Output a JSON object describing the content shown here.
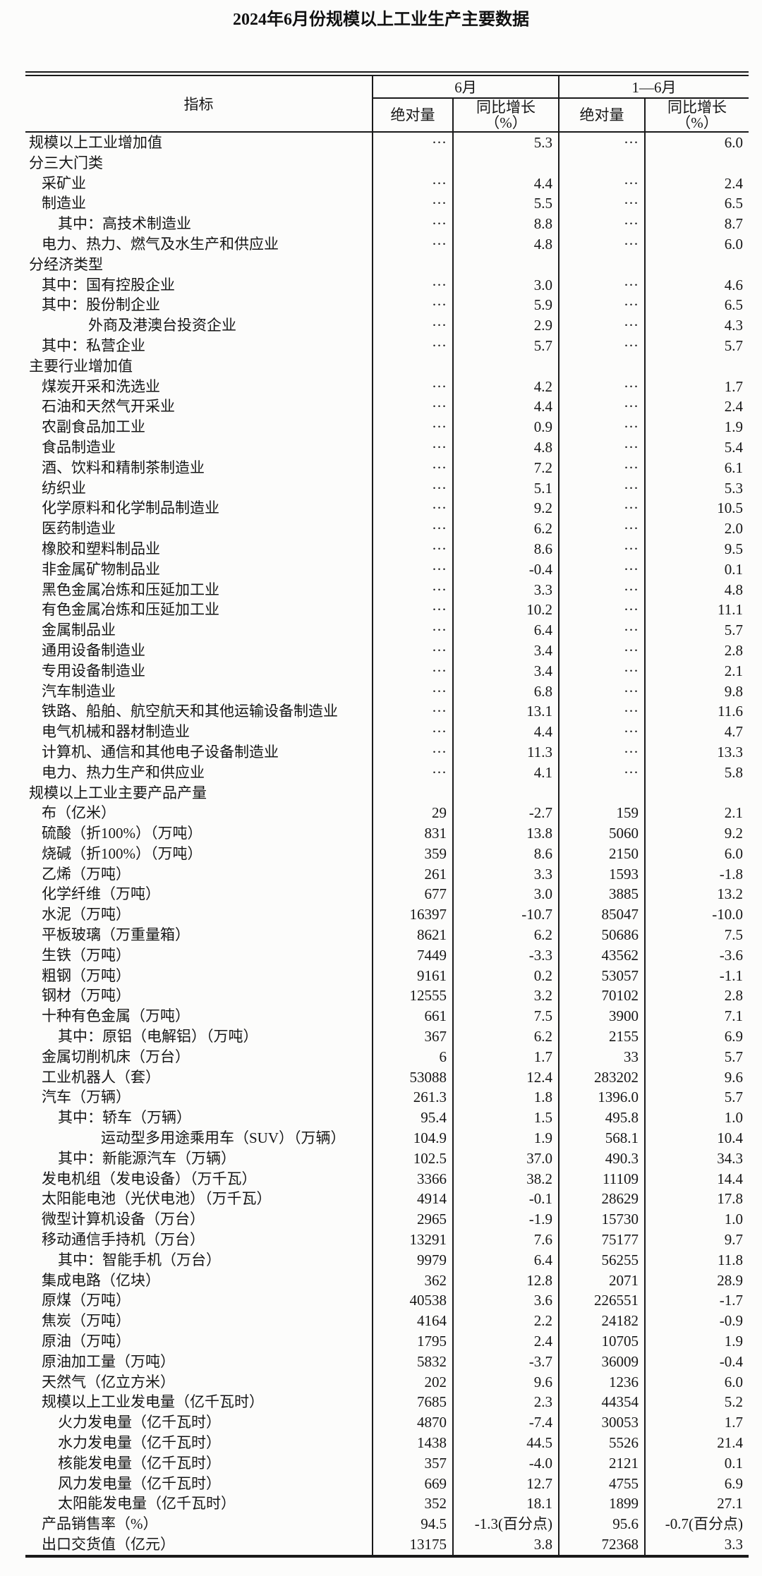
{
  "title": "2024年6月份规模以上工业生产主要数据",
  "table": {
    "header": {
      "indicator": "指标",
      "june": "6月",
      "jan_jun": "1—6月",
      "absolute": "绝对量",
      "yoy": "同比增长",
      "yoy_unit": "（%）"
    },
    "rows": [
      {
        "label": "规模以上工业增加值",
        "indent": 0,
        "values": [
          "···",
          "5.3",
          "···",
          "6.0"
        ]
      },
      {
        "label": "分三大门类",
        "indent": 0,
        "values": [
          "",
          "",
          "",
          ""
        ]
      },
      {
        "label": "采矿业",
        "indent": 1,
        "values": [
          "···",
          "4.4",
          "···",
          "2.4"
        ]
      },
      {
        "label": "制造业",
        "indent": 1,
        "values": [
          "···",
          "5.5",
          "···",
          "6.5"
        ]
      },
      {
        "label": "其中：高技术制造业",
        "indent": 2,
        "values": [
          "···",
          "8.8",
          "···",
          "8.7"
        ]
      },
      {
        "label": "电力、热力、燃气及水生产和供应业",
        "indent": 1,
        "values": [
          "···",
          "4.8",
          "···",
          "6.0"
        ]
      },
      {
        "label": "分经济类型",
        "indent": 0,
        "values": [
          "",
          "",
          "",
          ""
        ]
      },
      {
        "label": "其中：国有控股企业",
        "indent": 1,
        "values": [
          "···",
          "3.0",
          "···",
          "4.6"
        ]
      },
      {
        "label": "其中：股份制企业",
        "indent": 1,
        "values": [
          "···",
          "5.9",
          "···",
          "6.5"
        ]
      },
      {
        "label": "外商及港澳台投资企业",
        "indent": 3,
        "values": [
          "···",
          "2.9",
          "···",
          "4.3"
        ]
      },
      {
        "label": "其中：私营企业",
        "indent": 1,
        "values": [
          "···",
          "5.7",
          "···",
          "5.7"
        ]
      },
      {
        "label": "主要行业增加值",
        "indent": 0,
        "values": [
          "",
          "",
          "",
          ""
        ]
      },
      {
        "label": "煤炭开采和洗选业",
        "indent": 1,
        "values": [
          "···",
          "4.2",
          "···",
          "1.7"
        ]
      },
      {
        "label": "石油和天然气开采业",
        "indent": 1,
        "values": [
          "···",
          "4.4",
          "···",
          "2.4"
        ]
      },
      {
        "label": "农副食品加工业",
        "indent": 1,
        "values": [
          "···",
          "0.9",
          "···",
          "1.9"
        ]
      },
      {
        "label": "食品制造业",
        "indent": 1,
        "values": [
          "···",
          "4.8",
          "···",
          "5.4"
        ]
      },
      {
        "label": "酒、饮料和精制茶制造业",
        "indent": 1,
        "values": [
          "···",
          "7.2",
          "···",
          "6.1"
        ]
      },
      {
        "label": "纺织业",
        "indent": 1,
        "values": [
          "···",
          "5.1",
          "···",
          "5.3"
        ]
      },
      {
        "label": "化学原料和化学制品制造业",
        "indent": 1,
        "values": [
          "···",
          "9.2",
          "···",
          "10.5"
        ]
      },
      {
        "label": "医药制造业",
        "indent": 1,
        "values": [
          "···",
          "6.2",
          "···",
          "2.0"
        ]
      },
      {
        "label": "橡胶和塑料制品业",
        "indent": 1,
        "values": [
          "···",
          "8.6",
          "···",
          "9.5"
        ]
      },
      {
        "label": "非金属矿物制品业",
        "indent": 1,
        "values": [
          "···",
          "-0.4",
          "···",
          "0.1"
        ]
      },
      {
        "label": "黑色金属冶炼和压延加工业",
        "indent": 1,
        "values": [
          "···",
          "3.3",
          "···",
          "4.8"
        ]
      },
      {
        "label": "有色金属冶炼和压延加工业",
        "indent": 1,
        "values": [
          "···",
          "10.2",
          "···",
          "11.1"
        ]
      },
      {
        "label": "金属制品业",
        "indent": 1,
        "values": [
          "···",
          "6.4",
          "···",
          "5.7"
        ]
      },
      {
        "label": "通用设备制造业",
        "indent": 1,
        "values": [
          "···",
          "3.4",
          "···",
          "2.8"
        ]
      },
      {
        "label": "专用设备制造业",
        "indent": 1,
        "values": [
          "···",
          "3.4",
          "···",
          "2.1"
        ]
      },
      {
        "label": "汽车制造业",
        "indent": 1,
        "values": [
          "···",
          "6.8",
          "···",
          "9.8"
        ]
      },
      {
        "label": "铁路、船舶、航空航天和其他运输设备制造业",
        "indent": 1,
        "values": [
          "···",
          "13.1",
          "···",
          "11.6"
        ]
      },
      {
        "label": "电气机械和器材制造业",
        "indent": 1,
        "values": [
          "···",
          "4.4",
          "···",
          "4.7"
        ]
      },
      {
        "label": "计算机、通信和其他电子设备制造业",
        "indent": 1,
        "values": [
          "···",
          "11.3",
          "···",
          "13.3"
        ]
      },
      {
        "label": "电力、热力生产和供应业",
        "indent": 1,
        "values": [
          "···",
          "4.1",
          "···",
          "5.8"
        ]
      },
      {
        "label": "规模以上工业主要产品产量",
        "indent": 0,
        "values": [
          "",
          "",
          "",
          ""
        ]
      },
      {
        "label": "布（亿米）",
        "indent": 1,
        "values": [
          "29",
          "-2.7",
          "159",
          "2.1"
        ]
      },
      {
        "label": "硫酸（折100%）（万吨）",
        "indent": 1,
        "values": [
          "831",
          "13.8",
          "5060",
          "9.2"
        ]
      },
      {
        "label": "烧碱（折100%）（万吨）",
        "indent": 1,
        "values": [
          "359",
          "8.6",
          "2150",
          "6.0"
        ]
      },
      {
        "label": "乙烯（万吨）",
        "indent": 1,
        "values": [
          "261",
          "3.3",
          "1593",
          "-1.8"
        ]
      },
      {
        "label": "化学纤维（万吨）",
        "indent": 1,
        "values": [
          "677",
          "3.0",
          "3885",
          "13.2"
        ]
      },
      {
        "label": "水泥（万吨）",
        "indent": 1,
        "values": [
          "16397",
          "-10.7",
          "85047",
          "-10.0"
        ]
      },
      {
        "label": "平板玻璃（万重量箱）",
        "indent": 1,
        "values": [
          "8621",
          "6.2",
          "50686",
          "7.5"
        ]
      },
      {
        "label": "生铁（万吨）",
        "indent": 1,
        "values": [
          "7449",
          "-3.3",
          "43562",
          "-3.6"
        ]
      },
      {
        "label": "粗钢（万吨）",
        "indent": 1,
        "values": [
          "9161",
          "0.2",
          "53057",
          "-1.1"
        ]
      },
      {
        "label": "钢材（万吨）",
        "indent": 1,
        "values": [
          "12555",
          "3.2",
          "70102",
          "2.8"
        ]
      },
      {
        "label": "十种有色金属（万吨）",
        "indent": 1,
        "values": [
          "661",
          "7.5",
          "3900",
          "7.1"
        ]
      },
      {
        "label": "其中：原铝（电解铝）（万吨）",
        "indent": 2,
        "values": [
          "367",
          "6.2",
          "2155",
          "6.9"
        ]
      },
      {
        "label": "金属切削机床（万台）",
        "indent": 1,
        "values": [
          "6",
          "1.7",
          "33",
          "5.7"
        ]
      },
      {
        "label": "工业机器人（套）",
        "indent": 1,
        "values": [
          "53088",
          "12.4",
          "283202",
          "9.6"
        ]
      },
      {
        "label": "汽车（万辆）",
        "indent": 1,
        "values": [
          "261.3",
          "1.8",
          "1396.0",
          "5.7"
        ]
      },
      {
        "label": "其中：轿车（万辆）",
        "indent": 2,
        "values": [
          "95.4",
          "1.5",
          "495.8",
          "1.0"
        ]
      },
      {
        "label": "运动型多用途乘用车（SUV）（万辆）",
        "indent": 4,
        "values": [
          "104.9",
          "1.9",
          "568.1",
          "10.4"
        ]
      },
      {
        "label": "其中：新能源汽车（万辆）",
        "indent": 2,
        "values": [
          "102.5",
          "37.0",
          "490.3",
          "34.3"
        ]
      },
      {
        "label": "发电机组（发电设备）（万千瓦）",
        "indent": 1,
        "values": [
          "3366",
          "38.2",
          "11109",
          "14.4"
        ]
      },
      {
        "label": "太阳能电池（光伏电池）（万千瓦）",
        "indent": 1,
        "values": [
          "4914",
          "-0.1",
          "28629",
          "17.8"
        ]
      },
      {
        "label": "微型计算机设备（万台）",
        "indent": 1,
        "values": [
          "2965",
          "-1.9",
          "15730",
          "1.0"
        ]
      },
      {
        "label": "移动通信手持机（万台）",
        "indent": 1,
        "values": [
          "13291",
          "7.6",
          "75177",
          "9.7"
        ]
      },
      {
        "label": "其中：智能手机（万台）",
        "indent": 2,
        "values": [
          "9979",
          "6.4",
          "56255",
          "11.8"
        ]
      },
      {
        "label": "集成电路（亿块）",
        "indent": 1,
        "values": [
          "362",
          "12.8",
          "2071",
          "28.9"
        ]
      },
      {
        "label": "原煤（万吨）",
        "indent": 1,
        "values": [
          "40538",
          "3.6",
          "226551",
          "-1.7"
        ]
      },
      {
        "label": "焦炭（万吨）",
        "indent": 1,
        "values": [
          "4164",
          "2.2",
          "24182",
          "-0.9"
        ]
      },
      {
        "label": "原油（万吨）",
        "indent": 1,
        "values": [
          "1795",
          "2.4",
          "10705",
          "1.9"
        ]
      },
      {
        "label": "原油加工量（万吨）",
        "indent": 1,
        "values": [
          "5832",
          "-3.7",
          "36009",
          "-0.4"
        ]
      },
      {
        "label": "天然气（亿立方米）",
        "indent": 1,
        "values": [
          "202",
          "9.6",
          "1236",
          "6.0"
        ]
      },
      {
        "label": "规模以上工业发电量（亿千瓦时）",
        "indent": 1,
        "values": [
          "7685",
          "2.3",
          "44354",
          "5.2"
        ]
      },
      {
        "label": "火力发电量（亿千瓦时）",
        "indent": 2,
        "values": [
          "4870",
          "-7.4",
          "30053",
          "1.7"
        ]
      },
      {
        "label": "水力发电量（亿千瓦时）",
        "indent": 2,
        "values": [
          "1438",
          "44.5",
          "5526",
          "21.4"
        ]
      },
      {
        "label": "核能发电量（亿千瓦时）",
        "indent": 2,
        "values": [
          "357",
          "-4.0",
          "2121",
          "0.1"
        ]
      },
      {
        "label": "风力发电量（亿千瓦时）",
        "indent": 2,
        "values": [
          "669",
          "12.7",
          "4755",
          "6.9"
        ]
      },
      {
        "label": "太阳能发电量（亿千瓦时）",
        "indent": 2,
        "values": [
          "352",
          "18.1",
          "1899",
          "27.1"
        ]
      },
      {
        "label": "产品销售率（%）",
        "indent": 1,
        "values": [
          "94.5",
          "-1.3(百分点)",
          "95.6",
          "-0.7(百分点)"
        ]
      },
      {
        "label": "出口交货值（亿元）",
        "indent": 1,
        "values": [
          "13175",
          "3.8",
          "72368",
          "3.3"
        ]
      }
    ]
  }
}
